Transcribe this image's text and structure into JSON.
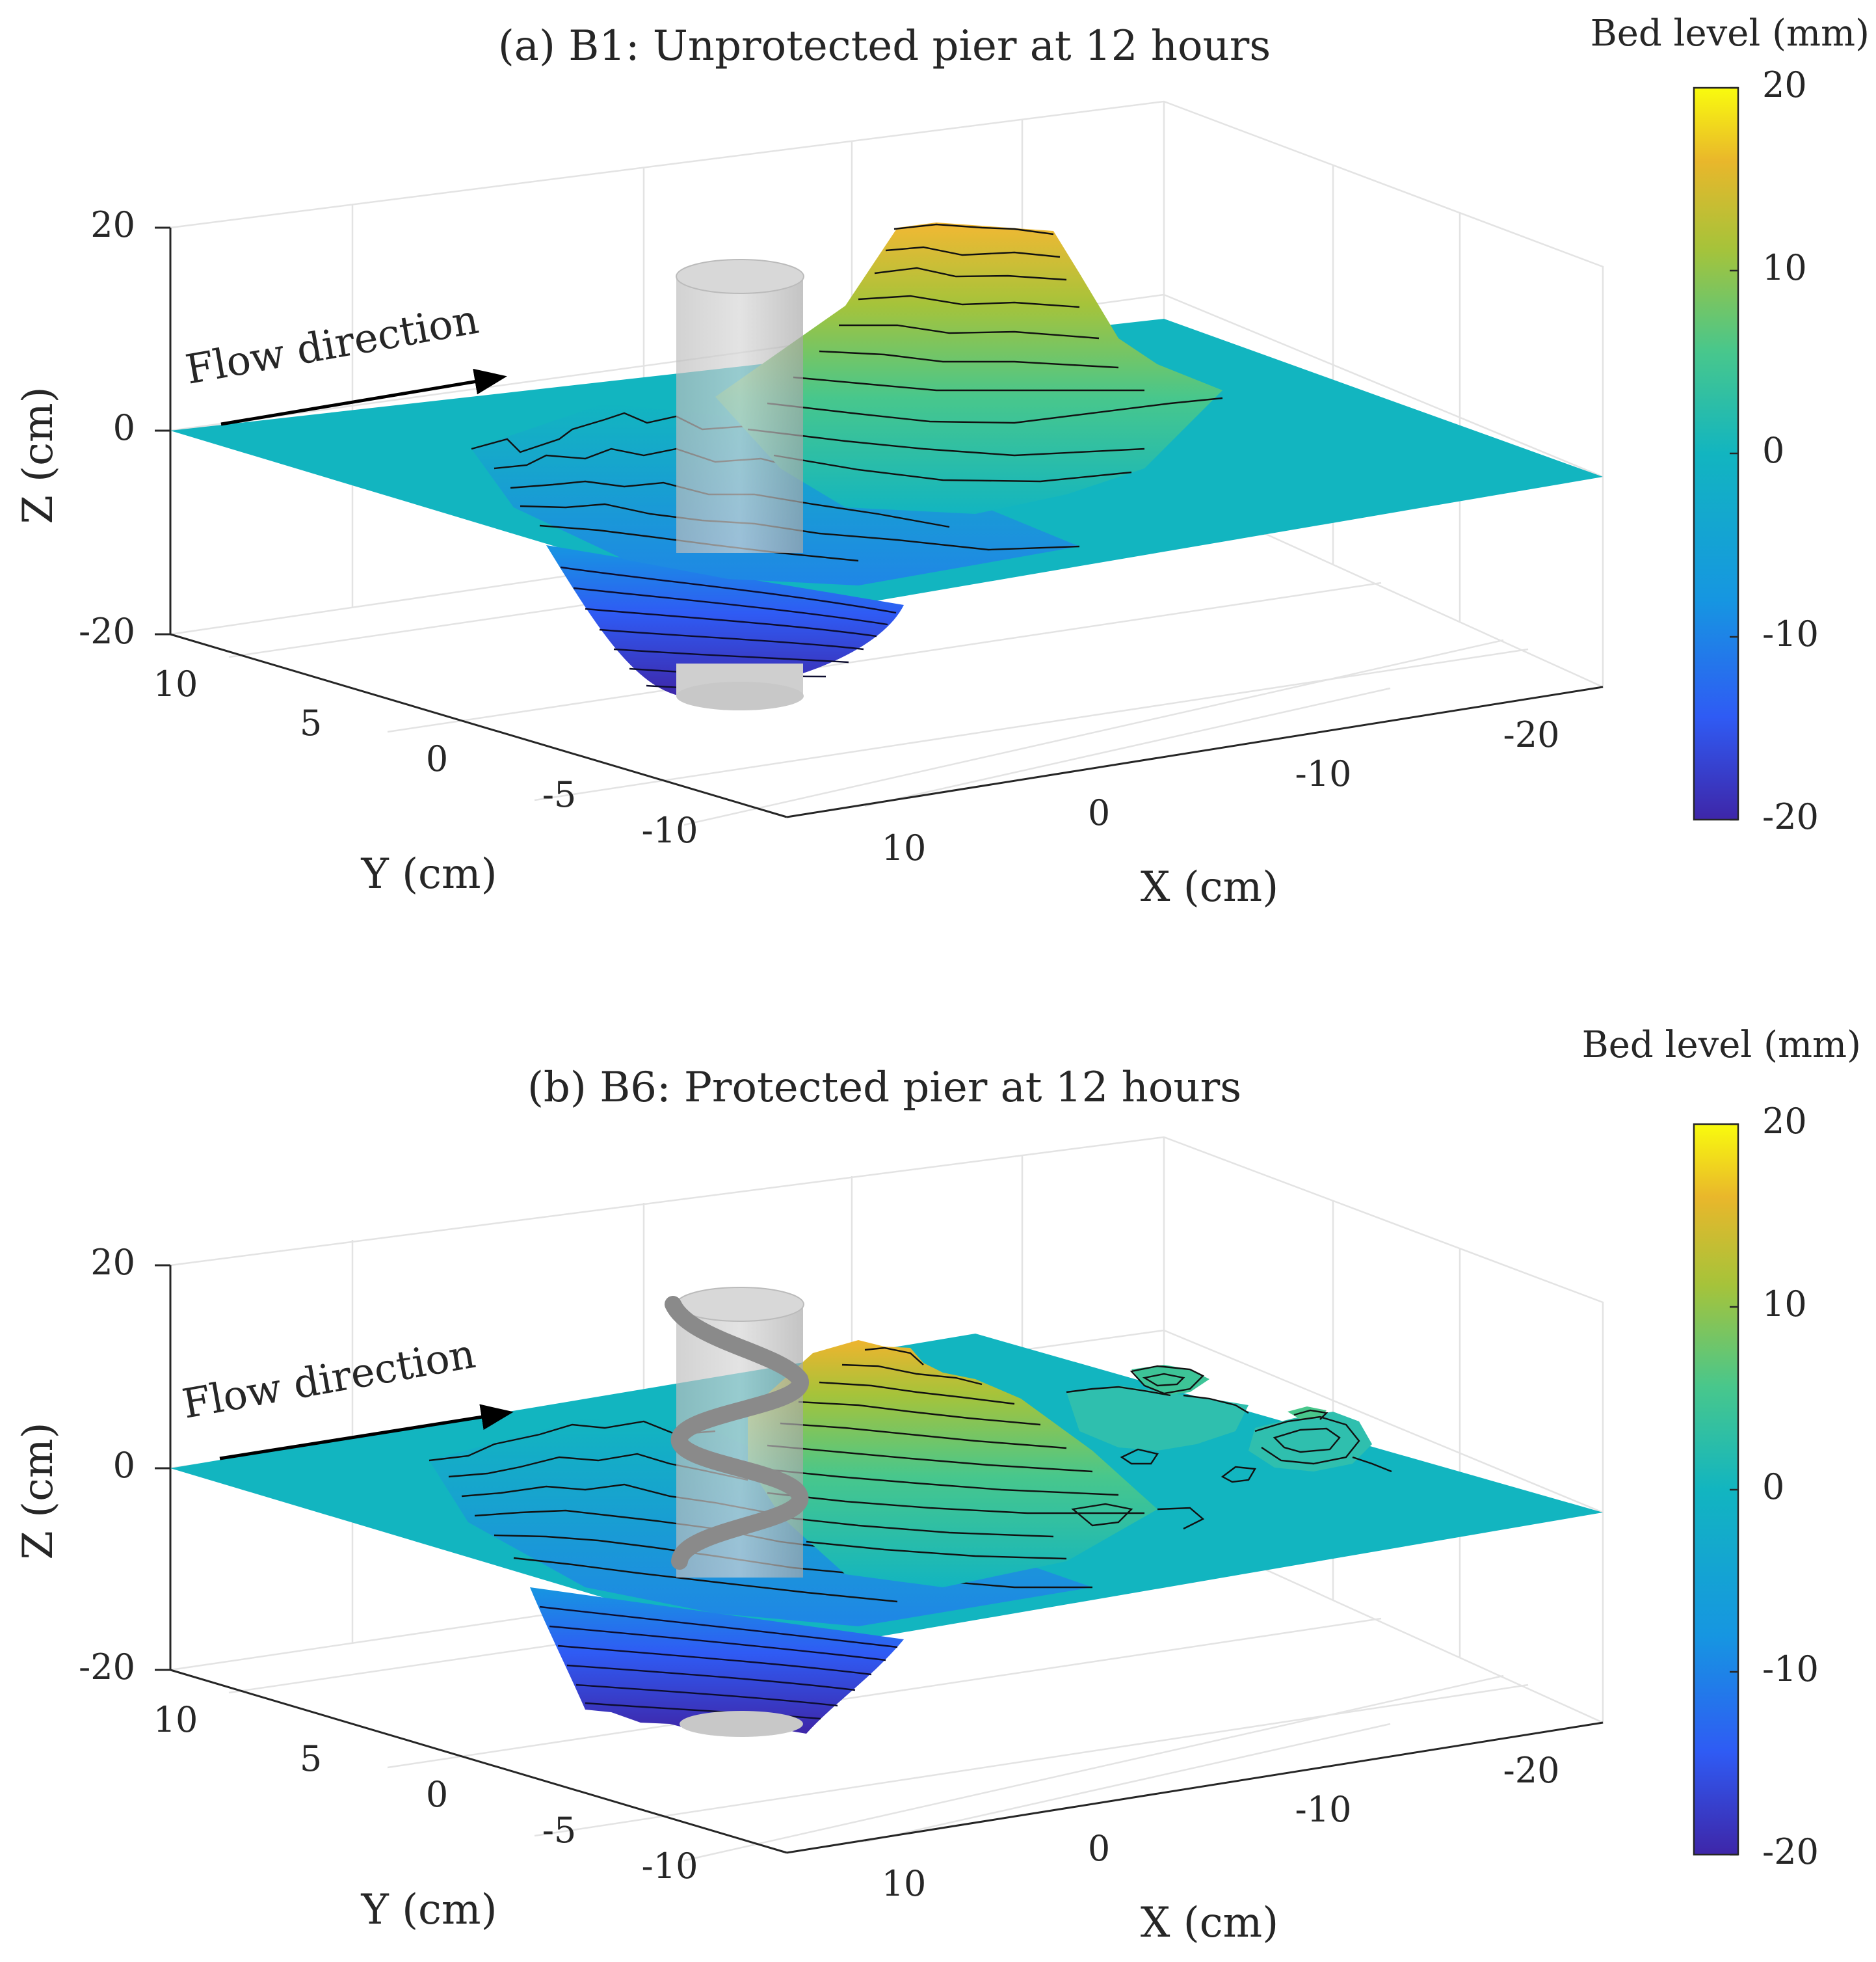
{
  "chart_data": [
    {
      "type": "surface3d",
      "title": "(a) B1: Unprotected pier at 12 hours",
      "xlabel": "X (cm)",
      "ylabel": "Y (cm)",
      "zlabel": "Z (cm)",
      "x_ticks": [
        "-20",
        "-10",
        "0",
        "10"
      ],
      "y_ticks": [
        "-10",
        "-5",
        "0",
        "5",
        "10"
      ],
      "z_ticks": [
        "-20",
        "0",
        "20"
      ],
      "xlim": [
        -25,
        15
      ],
      "ylim": [
        -12,
        12
      ],
      "zlim": [
        -20,
        20
      ],
      "annotation": "Flow direction",
      "pier": "cylinder",
      "colorbar": {
        "label": "Bed level (mm)",
        "ticks": [
          "20",
          "10",
          "0",
          "-10",
          "-20"
        ],
        "range": [
          -20,
          20
        ],
        "colormap": "parula"
      },
      "features": {
        "scour_hole_min_mm": -20,
        "deposition_mound_max_mm": 18
      }
    },
    {
      "type": "surface3d",
      "title": "(b) B6: Protected pier at 12 hours",
      "xlabel": "X (cm)",
      "ylabel": "Y (cm)",
      "zlabel": "Z (cm)",
      "x_ticks": [
        "-20",
        "-10",
        "0",
        "10"
      ],
      "y_ticks": [
        "-10",
        "-5",
        "0",
        "5",
        "10"
      ],
      "z_ticks": [
        "-20",
        "0",
        "20"
      ],
      "xlim": [
        -25,
        15
      ],
      "ylim": [
        -12,
        12
      ],
      "zlim": [
        -20,
        20
      ],
      "annotation": "Flow direction",
      "pier": "cylinder with helical protection",
      "colorbar": {
        "label": "Bed level (mm)",
        "ticks": [
          "20",
          "10",
          "0",
          "-10",
          "-20"
        ],
        "range": [
          -20,
          20
        ],
        "colormap": "parula"
      },
      "features": {
        "scour_hole_min_mm": -20,
        "deposition_mound_max_mm": 14
      }
    }
  ],
  "colors": {
    "surface_zero": "#12b5c0",
    "colormap_stops": [
      "#3e26a8",
      "#2f5bf4",
      "#1696e1",
      "#12b5c0",
      "#48c78c",
      "#a6c33a",
      "#e9b72b",
      "#f9fb0e"
    ]
  }
}
